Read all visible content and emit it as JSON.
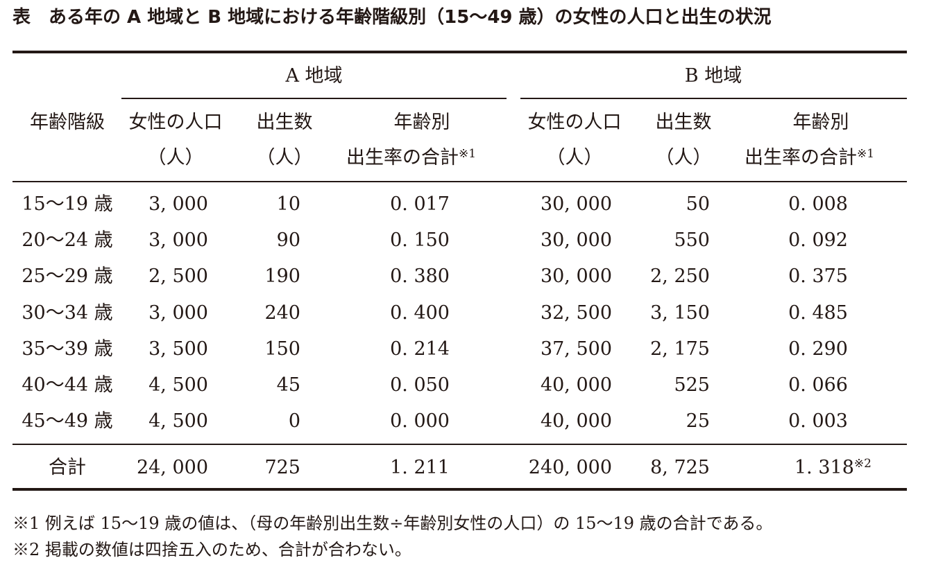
{
  "title": "表　ある年の A 地域と B 地域における年齢階級別（15〜49 歳）の女性の人口と出生の状況",
  "header": {
    "age_class": "年齢階級",
    "region_a": "A 地域",
    "region_b": "B 地域",
    "female_pop": "女性の人口",
    "births": "出生数",
    "unit": "（人）",
    "rate_line1": "年齢別",
    "rate_line2": "出生率の合計",
    "note_mark1": "※1"
  },
  "rows": [
    {
      "age": "15〜19 歳",
      "a_pop": "3, 000",
      "a_births": "10",
      "a_rate": "0. 017",
      "b_pop": "30, 000",
      "b_births": "50",
      "b_rate": "0. 008"
    },
    {
      "age": "20〜24 歳",
      "a_pop": "3, 000",
      "a_births": "90",
      "a_rate": "0. 150",
      "b_pop": "30, 000",
      "b_births": "550",
      "b_rate": "0. 092"
    },
    {
      "age": "25〜29 歳",
      "a_pop": "2, 500",
      "a_births": "190",
      "a_rate": "0. 380",
      "b_pop": "30, 000",
      "b_births": "2, 250",
      "b_rate": "0. 375"
    },
    {
      "age": "30〜34 歳",
      "a_pop": "3, 000",
      "a_births": "240",
      "a_rate": "0. 400",
      "b_pop": "32, 500",
      "b_births": "3, 150",
      "b_rate": "0. 485"
    },
    {
      "age": "35〜39 歳",
      "a_pop": "3, 500",
      "a_births": "150",
      "a_rate": "0. 214",
      "b_pop": "37, 500",
      "b_births": "2, 175",
      "b_rate": "0. 290"
    },
    {
      "age": "40〜44 歳",
      "a_pop": "4, 500",
      "a_births": "45",
      "a_rate": "0. 050",
      "b_pop": "40, 000",
      "b_births": "525",
      "b_rate": "0. 066"
    },
    {
      "age": "45〜49 歳",
      "a_pop": "4, 500",
      "a_births": "0",
      "a_rate": "0. 000",
      "b_pop": "40, 000",
      "b_births": "25",
      "b_rate": "0. 003"
    }
  ],
  "total": {
    "label": "合計",
    "a_pop": "24, 000",
    "a_births": "725",
    "a_rate": "1. 211",
    "b_pop": "240, 000",
    "b_births": "8, 725",
    "b_rate": "1. 318",
    "b_rate_mark": "※2"
  },
  "footnotes": [
    "※1  例えば 15〜19 歳の値は、（母の年齢別出生数÷年齢別女性の人口）の 15〜19 歳の合計である。",
    "※2  掲載の数値は四捨五入のため、合計が合わない。"
  ]
}
